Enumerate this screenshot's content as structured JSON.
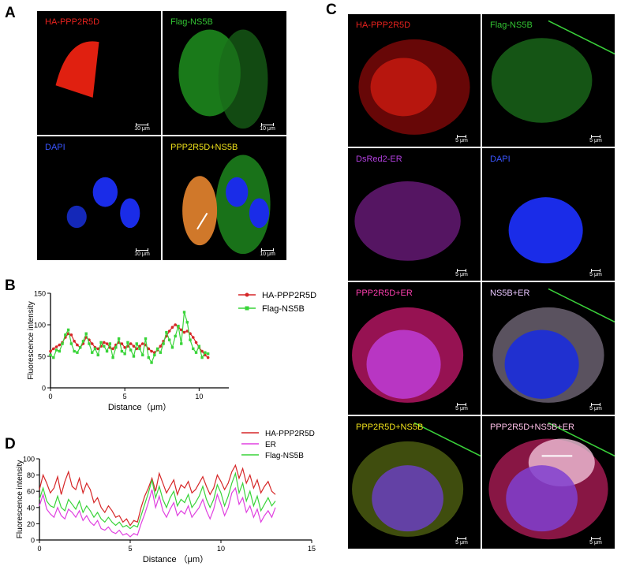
{
  "panels": {
    "A": {
      "letter": "A",
      "tiles": [
        {
          "label": "HA-PPP2R5D",
          "label_color": "#e8221e",
          "scale": "10 μm"
        },
        {
          "label": "Flag-NS5B",
          "label_color": "#33c433",
          "scale": "10 μm"
        },
        {
          "label": "DAPI",
          "label_color": "#3a55ff",
          "scale": "10 μm"
        },
        {
          "label": "PPP2R5D+NS5B",
          "label_color": "#f0e21a",
          "scale": "10 μm"
        }
      ]
    },
    "C": {
      "letter": "C",
      "tiles": [
        {
          "label": "HA-PPP2R5D",
          "label_color": "#e8221e",
          "scale": "5 μm"
        },
        {
          "label": "Flag-NS5B",
          "label_color": "#33c433",
          "scale": "5 μm"
        },
        {
          "label": "DsRed2-ER",
          "label_color": "#b340e0",
          "scale": "5 μm"
        },
        {
          "label": "DAPI",
          "label_color": "#3a55ff",
          "scale": "5 μm"
        },
        {
          "label": "PPP2R5D+ER",
          "label_color": "#ff3fb0",
          "scale": "5 μm"
        },
        {
          "label": "NS5B+ER",
          "label_color": "#e8c6ff",
          "scale": "5 μm"
        },
        {
          "label": "PPP2R5D+NS5B",
          "label_color": "#f0e21a",
          "scale": "5 μm"
        },
        {
          "label": "PPP2R5D+NS5B+ER",
          "label_color": "#ffc0e8",
          "scale": "5 μm"
        }
      ]
    },
    "B": {
      "letter": "B"
    },
    "D": {
      "letter": "D"
    }
  },
  "chart_data": [
    {
      "panel": "B",
      "type": "line",
      "xlabel": "Distance（μm）",
      "ylabel": "Fluorescence intensity",
      "xlim": [
        0,
        12
      ],
      "ylim": [
        0,
        150
      ],
      "xticks": [
        0,
        5,
        10
      ],
      "yticks": [
        0,
        50,
        100,
        150
      ],
      "legend_position": "top-right",
      "series": [
        {
          "name": "HA-PPP2R5D",
          "color": "#d62728",
          "marker": "circle",
          "x": [
            0,
            0.2,
            0.4,
            0.6,
            0.8,
            1.0,
            1.2,
            1.4,
            1.6,
            1.8,
            2.0,
            2.2,
            2.4,
            2.6,
            2.8,
            3.0,
            3.2,
            3.4,
            3.6,
            3.8,
            4.0,
            4.2,
            4.4,
            4.6,
            4.8,
            5.0,
            5.2,
            5.4,
            5.6,
            5.8,
            6.0,
            6.2,
            6.4,
            6.6,
            6.8,
            7.0,
            7.2,
            7.4,
            7.6,
            7.8,
            8.0,
            8.2,
            8.4,
            8.6,
            8.8,
            9.0,
            9.2,
            9.4,
            9.6,
            9.8,
            10.0,
            10.2,
            10.4,
            10.6
          ],
          "y": [
            58,
            62,
            65,
            68,
            72,
            80,
            86,
            84,
            74,
            68,
            64,
            70,
            80,
            76,
            70,
            64,
            62,
            66,
            72,
            70,
            64,
            62,
            68,
            72,
            70,
            64,
            66,
            70,
            66,
            62,
            66,
            70,
            68,
            62,
            58,
            56,
            60,
            66,
            74,
            82,
            90,
            96,
            100,
            96,
            92,
            88,
            90,
            86,
            80,
            72,
            64,
            58,
            52,
            48
          ]
        },
        {
          "name": "Flag-NS5B",
          "color": "#39d439",
          "marker": "square",
          "x": [
            0,
            0.2,
            0.4,
            0.6,
            0.8,
            1.0,
            1.2,
            1.4,
            1.6,
            1.8,
            2.0,
            2.2,
            2.4,
            2.6,
            2.8,
            3.0,
            3.2,
            3.4,
            3.6,
            3.8,
            4.0,
            4.2,
            4.4,
            4.6,
            4.8,
            5.0,
            5.2,
            5.4,
            5.6,
            5.8,
            6.0,
            6.2,
            6.4,
            6.6,
            6.8,
            7.0,
            7.2,
            7.4,
            7.6,
            7.8,
            8.0,
            8.2,
            8.4,
            8.6,
            8.8,
            9.0,
            9.2,
            9.4,
            9.6,
            9.8,
            10.0,
            10.2,
            10.4,
            10.6
          ],
          "y": [
            52,
            48,
            60,
            58,
            70,
            84,
            92,
            70,
            58,
            56,
            64,
            74,
            86,
            70,
            56,
            62,
            52,
            72,
            66,
            58,
            70,
            48,
            64,
            78,
            58,
            54,
            72,
            60,
            50,
            70,
            62,
            52,
            78,
            48,
            40,
            52,
            62,
            56,
            70,
            88,
            76,
            64,
            82,
            98,
            70,
            120,
            104,
            76,
            62,
            56,
            66,
            48,
            56,
            54
          ]
        }
      ]
    },
    {
      "panel": "D",
      "type": "line",
      "xlabel": "Distance （μm）",
      "ylabel": "Fluorescence intensity",
      "xlim": [
        0,
        15
      ],
      "ylim": [
        0,
        100
      ],
      "xticks": [
        0,
        5,
        10,
        15
      ],
      "yticks": [
        0,
        20,
        40,
        60,
        80,
        100
      ],
      "legend_position": "top-right",
      "series": [
        {
          "name": "HA-PPP2R5D",
          "color": "#d62728",
          "x": [
            0,
            0.2,
            0.4,
            0.6,
            0.8,
            1.0,
            1.2,
            1.4,
            1.6,
            1.8,
            2.0,
            2.2,
            2.4,
            2.6,
            2.8,
            3.0,
            3.2,
            3.4,
            3.6,
            3.8,
            4.0,
            4.2,
            4.4,
            4.6,
            4.8,
            5.0,
            5.2,
            5.4,
            5.6,
            5.8,
            6.0,
            6.2,
            6.4,
            6.6,
            6.8,
            7.0,
            7.2,
            7.4,
            7.6,
            7.8,
            8.0,
            8.2,
            8.4,
            8.6,
            8.8,
            9.0,
            9.2,
            9.4,
            9.6,
            9.8,
            10.0,
            10.2,
            10.4,
            10.6,
            10.8,
            11.0,
            11.2,
            11.4,
            11.6,
            11.8,
            12.0,
            12.2,
            12.4,
            12.6,
            12.8,
            13.0
          ],
          "y": [
            62,
            80,
            70,
            58,
            64,
            78,
            56,
            72,
            84,
            66,
            62,
            76,
            58,
            70,
            62,
            46,
            52,
            40,
            34,
            42,
            36,
            28,
            30,
            22,
            26,
            18,
            24,
            22,
            40,
            54,
            64,
            76,
            60,
            82,
            70,
            58,
            66,
            74,
            56,
            68,
            64,
            72,
            58,
            62,
            70,
            78,
            66,
            56,
            64,
            80,
            72,
            62,
            70,
            84,
            92,
            76,
            88,
            70,
            80,
            64,
            74,
            58,
            66,
            72,
            60,
            56
          ]
        },
        {
          "name": "ER",
          "color": "#e040e0",
          "x": [
            0,
            0.2,
            0.4,
            0.6,
            0.8,
            1.0,
            1.2,
            1.4,
            1.6,
            1.8,
            2.0,
            2.2,
            2.4,
            2.6,
            2.8,
            3.0,
            3.2,
            3.4,
            3.6,
            3.8,
            4.0,
            4.2,
            4.4,
            4.6,
            4.8,
            5.0,
            5.2,
            5.4,
            5.6,
            5.8,
            6.0,
            6.2,
            6.4,
            6.6,
            6.8,
            7.0,
            7.2,
            7.4,
            7.6,
            7.8,
            8.0,
            8.2,
            8.4,
            8.6,
            8.8,
            9.0,
            9.2,
            9.4,
            9.6,
            9.8,
            10.0,
            10.2,
            10.4,
            10.6,
            10.8,
            11.0,
            11.2,
            11.4,
            11.6,
            11.8,
            12.0,
            12.2,
            12.4,
            12.6,
            12.8,
            13.0
          ],
          "y": [
            42,
            56,
            38,
            32,
            28,
            40,
            30,
            26,
            38,
            34,
            28,
            36,
            24,
            30,
            22,
            18,
            24,
            14,
            12,
            16,
            10,
            8,
            12,
            6,
            8,
            4,
            8,
            6,
            20,
            32,
            46,
            62,
            40,
            54,
            36,
            28,
            38,
            46,
            30,
            36,
            32,
            42,
            28,
            34,
            40,
            50,
            36,
            26,
            38,
            56,
            44,
            30,
            40,
            58,
            64,
            44,
            52,
            34,
            42,
            28,
            38,
            22,
            30,
            36,
            28,
            40
          ]
        },
        {
          "name": "Flag-NS5B",
          "color": "#39d439",
          "x": [
            0,
            0.2,
            0.4,
            0.6,
            0.8,
            1.0,
            1.2,
            1.4,
            1.6,
            1.8,
            2.0,
            2.2,
            2.4,
            2.6,
            2.8,
            3.0,
            3.2,
            3.4,
            3.6,
            3.8,
            4.0,
            4.2,
            4.4,
            4.6,
            4.8,
            5.0,
            5.2,
            5.4,
            5.6,
            5.8,
            6.0,
            6.2,
            6.4,
            6.6,
            6.8,
            7.0,
            7.2,
            7.4,
            7.6,
            7.8,
            8.0,
            8.2,
            8.4,
            8.6,
            8.8,
            9.0,
            9.2,
            9.4,
            9.6,
            9.8,
            10.0,
            10.2,
            10.4,
            10.6,
            10.8,
            11.0,
            11.2,
            11.4,
            11.6,
            11.8,
            12.0,
            12.2,
            12.4,
            12.6,
            12.8,
            13.0
          ],
          "y": [
            50,
            64,
            48,
            42,
            40,
            54,
            40,
            36,
            50,
            44,
            38,
            48,
            34,
            42,
            36,
            28,
            34,
            26,
            22,
            28,
            22,
            18,
            22,
            16,
            18,
            14,
            18,
            16,
            30,
            44,
            58,
            74,
            52,
            66,
            50,
            40,
            52,
            60,
            42,
            50,
            46,
            56,
            40,
            46,
            54,
            66,
            50,
            40,
            50,
            68,
            58,
            42,
            54,
            70,
            82,
            58,
            70,
            48,
            60,
            42,
            54,
            36,
            44,
            52,
            42,
            48
          ]
        }
      ]
    }
  ]
}
